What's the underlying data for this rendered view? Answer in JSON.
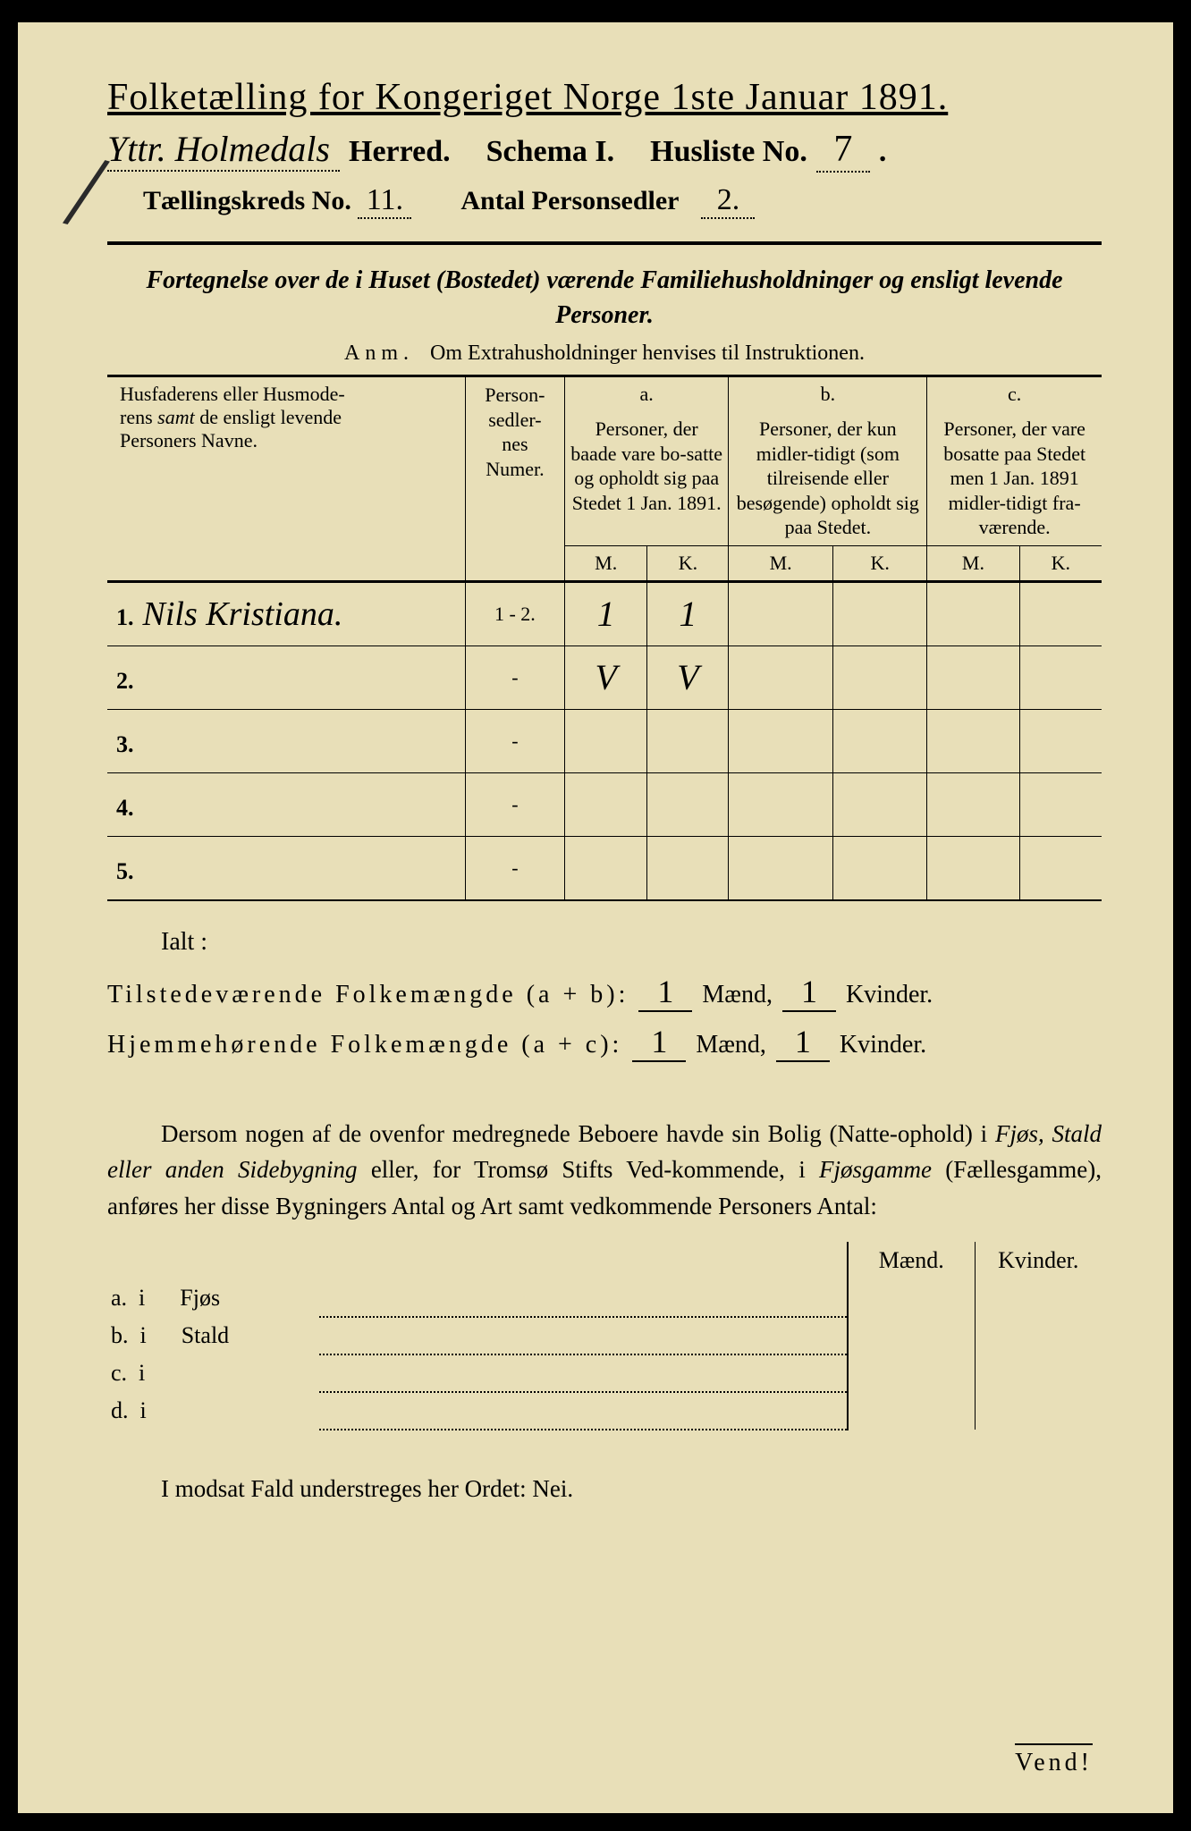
{
  "title": "Folketælling for Kongeriget Norge 1ste Januar 1891.",
  "herred_hand": "Yttr. Holmedals",
  "herred_label": "Herred.",
  "schema_label": "Schema I.",
  "husliste_label": "Husliste No.",
  "husliste_no": "7",
  "taelling_label": "Tællingskreds No.",
  "taelling_no": "11.",
  "antal_label": "Antal Personsedler",
  "antal_no": "2.",
  "fortegnelse": "Fortegnelse over de i Huset (Bostedet) værende Familiehusholdninger og ensligt levende Personer.",
  "anm_label": "Anm.",
  "anm_text": "Om Extrahusholdninger henvises til Instruktionen.",
  "col_names_1": "Husfaderens eller Husmode-",
  "col_names_2": "rens ",
  "col_names_2it": "samt",
  "col_names_2b": " de ensligt levende",
  "col_names_3": "Personers Navne.",
  "col_numer": "Person-\nsedler-\nnes\nNumer.",
  "col_a": "a.",
  "col_a_text": "Personer, der baade vare bo-satte og opholdt sig paa Stedet 1 Jan. 1891.",
  "col_b": "b.",
  "col_b_text": "Personer, der kun midler-tidigt (som tilreisende eller besøgende) opholdt sig paa Stedet.",
  "col_c": "c.",
  "col_c_text": "Personer, der vare bosatte paa Stedet men 1 Jan. 1891 midler-tidigt fra-værende.",
  "M": "M.",
  "K": "K.",
  "rows": [
    {
      "n": "1.",
      "name": "Nils Kristiana.",
      "numer": "1 - 2.",
      "aM": "1",
      "aK": "1",
      "bM": "",
      "bK": "",
      "cM": "",
      "cK": ""
    },
    {
      "n": "2.",
      "name": "",
      "numer": "-",
      "aM": "V",
      "aK": "V",
      "bM": "",
      "bK": "",
      "cM": "",
      "cK": ""
    },
    {
      "n": "3.",
      "name": "",
      "numer": "-",
      "aM": "",
      "aK": "",
      "bM": "",
      "bK": "",
      "cM": "",
      "cK": ""
    },
    {
      "n": "4.",
      "name": "",
      "numer": "-",
      "aM": "",
      "aK": "",
      "bM": "",
      "bK": "",
      "cM": "",
      "cK": ""
    },
    {
      "n": "5.",
      "name": "",
      "numer": "-",
      "aM": "",
      "aK": "",
      "bM": "",
      "bK": "",
      "cM": "",
      "cK": ""
    }
  ],
  "ialt": "Ialt :",
  "tilstede": "Tilstedeværende Folkemængde (a + b):",
  "hjemme": "Hjemmehørende Folkemængde (a + c):",
  "maend": "Mænd,",
  "kvinder": "Kvinder.",
  "tilstede_m": "1",
  "tilstede_k": "1",
  "hjemme_m": "1",
  "hjemme_k": "1",
  "dersom": "Dersom nogen af de ovenfor medregnede Beboere havde sin Bolig (Natte-ophold) i ",
  "dersom_it1": "Fjøs, Stald eller anden Sidebygning",
  "dersom2": " eller, for Tromsø Stifts Ved-kommende, i ",
  "dersom_it2": "Fjøsgamme",
  "dersom3": " (Fællesgamme), anføres her disse Bygningers Antal og Art samt vedkommende Personers Antal:",
  "bh_maend": "Mænd.",
  "bh_kvinder": "Kvinder.",
  "row_a": "a.  i      Fjøs",
  "row_b": "b.  i      Stald",
  "row_c": "c.  i",
  "row_d": "d.  i",
  "modsat": "I modsat Fald understreges her Ordet: Nei.",
  "vend": "Vend!"
}
